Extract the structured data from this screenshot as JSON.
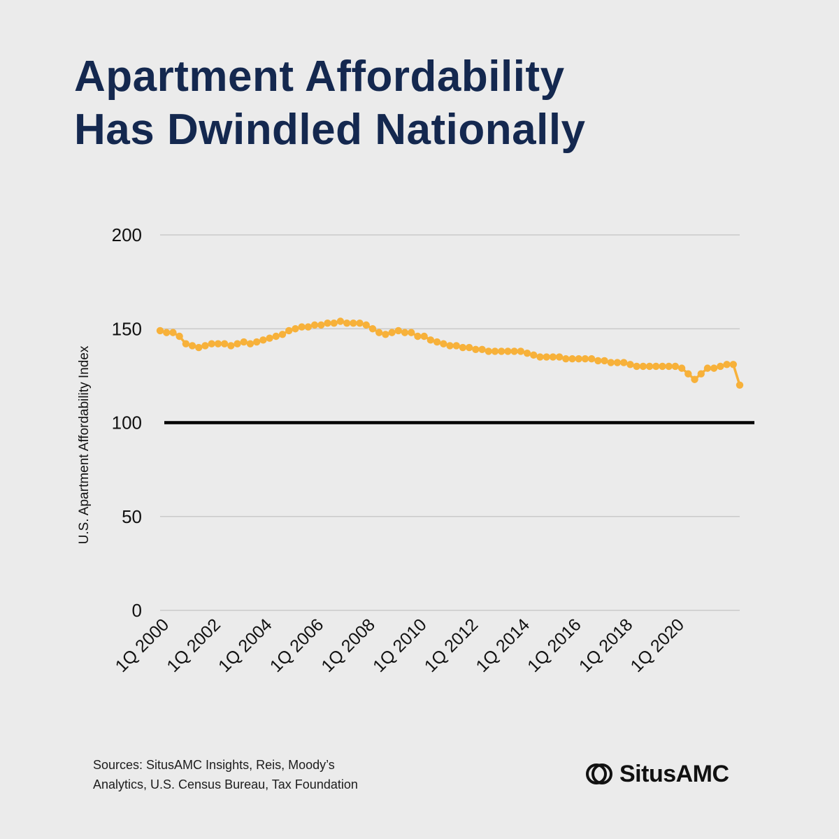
{
  "header": {
    "title_line1": "Apartment Affordability",
    "title_line2": "Has Dwindled Nationally"
  },
  "footer": {
    "sources_line1": "Sources: SitusAMC Insights, Reis, Moody’s",
    "sources_line2": "Analytics, U.S. Census Bureau, Tax Foundation",
    "brand_name": "SitusAMC"
  },
  "colors": {
    "background": "#ebebeb",
    "title": "#14284f",
    "series": "#f7b13a",
    "reference_line": "#000000",
    "grid": "#c4c4c4"
  },
  "chart_data": {
    "type": "line",
    "title": "",
    "xlabel": "",
    "ylabel": "U.S. Apartment Affordability Index",
    "ylim": [
      0,
      200
    ],
    "yticks": [
      0,
      50,
      100,
      150,
      200
    ],
    "grid": true,
    "x_tick_labels": [
      "1Q 2000",
      "1Q 2002",
      "1Q 2004",
      "1Q 2006",
      "1Q 2008",
      "1Q 2010",
      "1Q 2012",
      "1Q 2014",
      "1Q 2016",
      "1Q 2018",
      "1Q 2020"
    ],
    "x_tick_every": 8,
    "x_start": "1Q 2000",
    "x_end": "1Q 2021",
    "reference_line": {
      "value": 100
    },
    "series": [
      {
        "name": "U.S. Apartment Affordability Index",
        "values": [
          149,
          148,
          148,
          146,
          142,
          141,
          140,
          141,
          142,
          142,
          142,
          141,
          142,
          143,
          142,
          143,
          144,
          145,
          146,
          147,
          149,
          150,
          151,
          151,
          152,
          152,
          153,
          153,
          154,
          153,
          153,
          153,
          152,
          150,
          148,
          147,
          148,
          149,
          148,
          148,
          146,
          146,
          144,
          143,
          142,
          141,
          141,
          140,
          140,
          139,
          139,
          138,
          138,
          138,
          138,
          138,
          138,
          137,
          136,
          135,
          135,
          135,
          135,
          134,
          134,
          134,
          134,
          134,
          133,
          133,
          132,
          132,
          132,
          131,
          130,
          130,
          130,
          130,
          130,
          130,
          130,
          129,
          126,
          123,
          126,
          129,
          129,
          130,
          131,
          131,
          120
        ]
      }
    ]
  }
}
